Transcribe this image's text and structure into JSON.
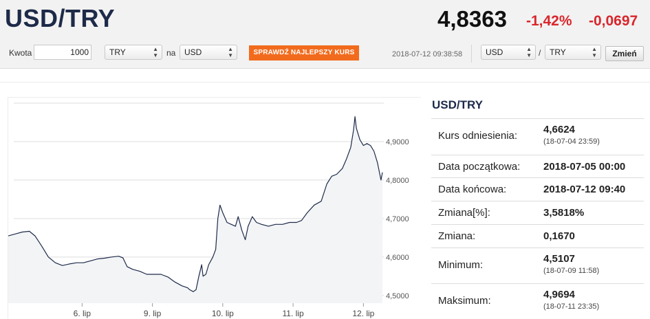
{
  "header": {
    "pair": "USD/TRY",
    "rate": "4,8363",
    "change_pct": "-1,42%",
    "change_abs": "-0,0697"
  },
  "toolbar": {
    "amount_label": "Kwota",
    "amount_value": "1000",
    "from_currency": "TRY",
    "to_label": "na",
    "to_currency": "USD",
    "best_rate_button": "SPRAWDŹ NAJLEPSZY KURS",
    "timestamp": "2018-07-12 09:38:58",
    "base_select": "USD",
    "separator": "/",
    "quote_select": "TRY",
    "change_button": "Zmień"
  },
  "stats": {
    "title": "USD/TRY",
    "rows": [
      {
        "label": "Kurs odniesienia:",
        "value": "4,6624",
        "sub": "(18-07-04 23:59)"
      },
      {
        "label": "Data początkowa:",
        "value": "2018-07-05 00:00"
      },
      {
        "label": "Data końcowa:",
        "value": "2018-07-12 09:40"
      },
      {
        "label": "Zmiana[%]:",
        "value": "3,5818%"
      },
      {
        "label": "Zmiana:",
        "value": "0,1670"
      },
      {
        "label": "Minimum:",
        "value": "4,5107",
        "sub": "(18-07-09 11:58)"
      },
      {
        "label": "Maksimum:",
        "value": "4,9694",
        "sub": "(18-07-11 23:35)"
      }
    ]
  },
  "colors": {
    "line": "#1d2a48",
    "area": "#f2f4f6",
    "grid": "#dddddd",
    "negative": "#d9262c",
    "accent_button": "#f26b1d"
  },
  "chart_data": {
    "type": "area",
    "x_unit": "days since 2018-07-05 00:00",
    "ylim": [
      4.48,
      5.0
    ],
    "y_ticks": [
      {
        "value": 4.5,
        "label": "4,5000"
      },
      {
        "value": 4.6,
        "label": "4,6000"
      },
      {
        "value": 4.7,
        "label": "4,7000"
      },
      {
        "value": 4.8,
        "label": "4,8000"
      },
      {
        "value": 4.9,
        "label": "4,9000"
      }
    ],
    "x_ticks": [
      {
        "x": 1,
        "label": "6. lip"
      },
      {
        "x": 2,
        "label": "9. lip"
      },
      {
        "x": 3,
        "label": "10. lip"
      },
      {
        "x": 4,
        "label": "11. lip"
      },
      {
        "x": 5,
        "label": "12. lip"
      }
    ],
    "series": [
      {
        "points": [
          [
            -0.05,
            4.655
          ],
          [
            0.05,
            4.66
          ],
          [
            0.15,
            4.665
          ],
          [
            0.25,
            4.667
          ],
          [
            0.33,
            4.655
          ],
          [
            0.42,
            4.63
          ],
          [
            0.52,
            4.6
          ],
          [
            0.62,
            4.585
          ],
          [
            0.72,
            4.578
          ],
          [
            0.82,
            4.582
          ],
          [
            0.92,
            4.585
          ],
          [
            1.02,
            4.585
          ],
          [
            1.12,
            4.59
          ],
          [
            1.22,
            4.595
          ],
          [
            1.32,
            4.597
          ],
          [
            1.42,
            4.6
          ],
          [
            1.52,
            4.602
          ],
          [
            1.58,
            4.598
          ],
          [
            1.64,
            4.575
          ],
          [
            1.72,
            4.568
          ],
          [
            1.82,
            4.563
          ],
          [
            1.92,
            4.555
          ],
          [
            2.02,
            4.555
          ],
          [
            2.12,
            4.555
          ],
          [
            2.22,
            4.548
          ],
          [
            2.32,
            4.535
          ],
          [
            2.42,
            4.525
          ],
          [
            2.5,
            4.52
          ],
          [
            2.53,
            4.515
          ],
          [
            2.58,
            4.51
          ],
          [
            2.62,
            4.515
          ],
          [
            2.66,
            4.55
          ],
          [
            2.7,
            4.58
          ],
          [
            2.72,
            4.55
          ],
          [
            2.76,
            4.555
          ],
          [
            2.8,
            4.58
          ],
          [
            2.86,
            4.6
          ],
          [
            2.9,
            4.62
          ],
          [
            2.93,
            4.7
          ],
          [
            2.96,
            4.735
          ],
          [
            3.0,
            4.715
          ],
          [
            3.06,
            4.69
          ],
          [
            3.12,
            4.685
          ],
          [
            3.18,
            4.68
          ],
          [
            3.22,
            4.705
          ],
          [
            3.27,
            4.67
          ],
          [
            3.32,
            4.645
          ],
          [
            3.36,
            4.68
          ],
          [
            3.42,
            4.705
          ],
          [
            3.48,
            4.69
          ],
          [
            3.55,
            4.685
          ],
          [
            3.65,
            4.68
          ],
          [
            3.75,
            4.685
          ],
          [
            3.85,
            4.685
          ],
          [
            3.95,
            4.69
          ],
          [
            4.05,
            4.69
          ],
          [
            4.12,
            4.695
          ],
          [
            4.2,
            4.715
          ],
          [
            4.3,
            4.735
          ],
          [
            4.4,
            4.745
          ],
          [
            4.48,
            4.79
          ],
          [
            4.55,
            4.81
          ],
          [
            4.62,
            4.815
          ],
          [
            4.7,
            4.83
          ],
          [
            4.76,
            4.855
          ],
          [
            4.82,
            4.885
          ],
          [
            4.86,
            4.93
          ],
          [
            4.88,
            4.965
          ],
          [
            4.9,
            4.935
          ],
          [
            4.95,
            4.905
          ],
          [
            5.0,
            4.89
          ],
          [
            5.05,
            4.895
          ],
          [
            5.1,
            4.89
          ],
          [
            5.15,
            4.875
          ],
          [
            5.2,
            4.845
          ],
          [
            5.25,
            4.8
          ],
          [
            5.27,
            4.82
          ]
        ]
      }
    ]
  }
}
